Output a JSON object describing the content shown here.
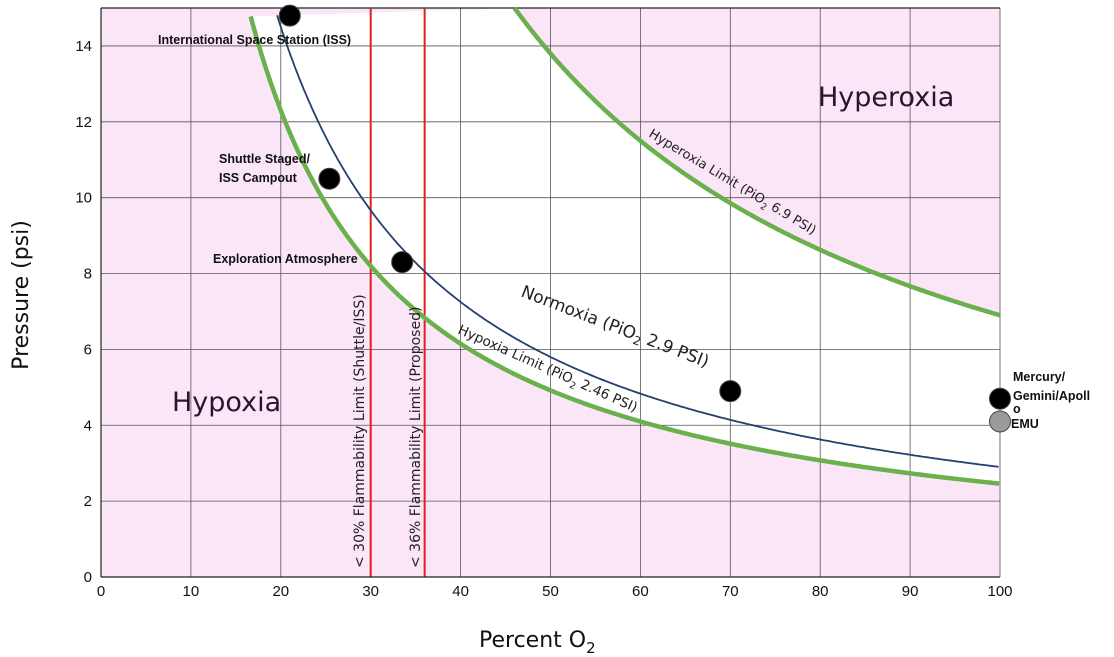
{
  "chart_data": {
    "type": "line",
    "xlabel": "Percent O",
    "xlabel_sub": "2",
    "ylabel": "Pressure (psi)",
    "xlim": [
      0,
      100
    ],
    "ylim": [
      0,
      15
    ],
    "x_ticks": [
      0,
      10,
      20,
      30,
      40,
      50,
      60,
      70,
      80,
      90,
      100
    ],
    "y_ticks": [
      0,
      2,
      4,
      6,
      8,
      10,
      12,
      14
    ],
    "grid": true,
    "colors": {
      "pink_region": "#fbe6f8",
      "normal_region": "#ffffff",
      "limit_curve": "#6ab04c",
      "normoxia_curve": "#24406e",
      "flammability_line": "#e02020",
      "point": "#000000",
      "emu_point": "#9a9a9a",
      "grid": "#555555"
    },
    "regions": {
      "hyperoxia": "Hyperoxia",
      "hypoxia": "Hypoxia"
    },
    "series": [
      {
        "key": "hyperoxia",
        "constant": 6.9,
        "name_parts": [
          "Hyperoxia Limit (PiO",
          "2",
          " 6.9 PSI)"
        ]
      },
      {
        "key": "normoxia",
        "constant": 2.9,
        "name_parts": [
          "Normoxia (PiO",
          "2",
          " 2.9 PSI)"
        ]
      },
      {
        "key": "hypoxia",
        "constant": 2.46,
        "name_parts": [
          "Hypoxia Limit (PiO",
          "2",
          " 2.46 PSI)"
        ]
      }
    ],
    "flammability_limits": [
      {
        "x": 30,
        "label": "< 30% Flammability Limit (Shuttle/ISS)"
      },
      {
        "x": 36,
        "label": "< 36% Flammability Limit (Proposed)"
      }
    ],
    "points": [
      {
        "name": "International Space Station (ISS)",
        "x": 21,
        "y": 14.8,
        "kind": "black"
      },
      {
        "name": "Shuttle Staged/ ISS Campout",
        "label_lines": [
          "Shuttle Staged/",
          "ISS Campout"
        ],
        "x": 25.4,
        "y": 10.5,
        "kind": "black"
      },
      {
        "name": "Exploration Atmosphere",
        "x": 33.5,
        "y": 8.3,
        "kind": "black"
      },
      {
        "name": "",
        "x": 70,
        "y": 4.9,
        "kind": "black"
      },
      {
        "name": "Mercury/ Gemini/Apollo",
        "label_lines": [
          "Mercury/",
          "Gemini/Apoll",
          "o"
        ],
        "x": 100,
        "y": 4.7,
        "kind": "black"
      },
      {
        "name": "EMU",
        "x": 100,
        "y": 4.1,
        "kind": "gray"
      }
    ]
  }
}
